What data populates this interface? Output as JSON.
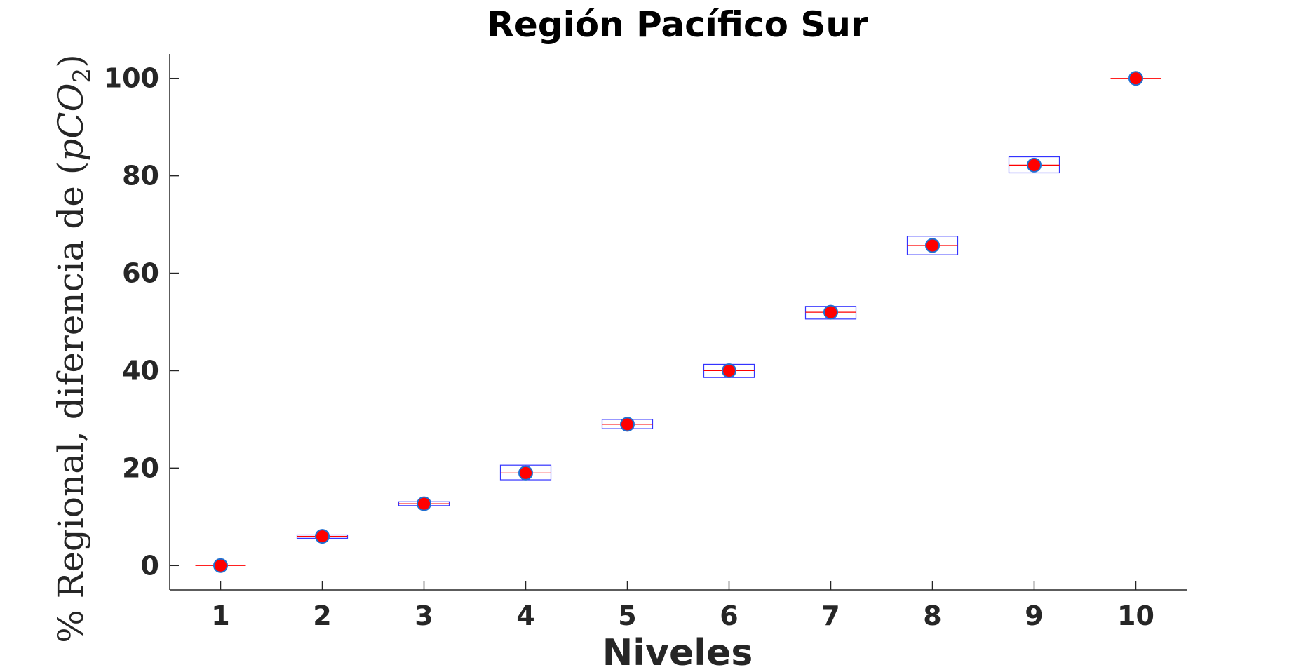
{
  "chart_data": {
    "type": "box",
    "title": "Región Pacífico Sur",
    "xlabel": "Niveles",
    "ylabel_prefix": "% Regional, diferencia de (",
    "ylabel_var": "pCO",
    "ylabel_sub": "2",
    "ylabel_suffix": ")",
    "xlim": [
      0.5,
      10.5
    ],
    "ylim": [
      -5,
      105
    ],
    "x_ticks": [
      1,
      2,
      3,
      4,
      5,
      6,
      7,
      8,
      9,
      10
    ],
    "y_ticks": [
      0,
      20,
      40,
      60,
      80,
      100
    ],
    "grid": false,
    "colors": {
      "box": "#3333ff",
      "median": "#ff0000",
      "marker_fill": "#ff0000",
      "marker_edge": "#1f6fd1",
      "axis": "#262626"
    },
    "boxes": [
      {
        "level": 1,
        "q1": 0,
        "median": 0,
        "q3": 0,
        "mean": 0
      },
      {
        "level": 2,
        "q1": 5.6,
        "median": 6.0,
        "q3": 6.3,
        "mean": 6.0
      },
      {
        "level": 3,
        "q1": 12.3,
        "median": 12.7,
        "q3": 13.1,
        "mean": 12.7
      },
      {
        "level": 4,
        "q1": 17.6,
        "median": 19.0,
        "q3": 20.6,
        "mean": 19.0
      },
      {
        "level": 5,
        "q1": 28.1,
        "median": 29.0,
        "q3": 30.0,
        "mean": 29.0
      },
      {
        "level": 6,
        "q1": 38.6,
        "median": 40.0,
        "q3": 41.3,
        "mean": 40.0
      },
      {
        "level": 7,
        "q1": 50.6,
        "median": 52.0,
        "q3": 53.2,
        "mean": 52.0
      },
      {
        "level": 8,
        "q1": 63.8,
        "median": 65.7,
        "q3": 67.6,
        "mean": 65.7
      },
      {
        "level": 9,
        "q1": 80.6,
        "median": 82.2,
        "q3": 83.9,
        "mean": 82.2
      },
      {
        "level": 10,
        "q1": 100,
        "median": 100,
        "q3": 100,
        "mean": 100
      }
    ]
  }
}
